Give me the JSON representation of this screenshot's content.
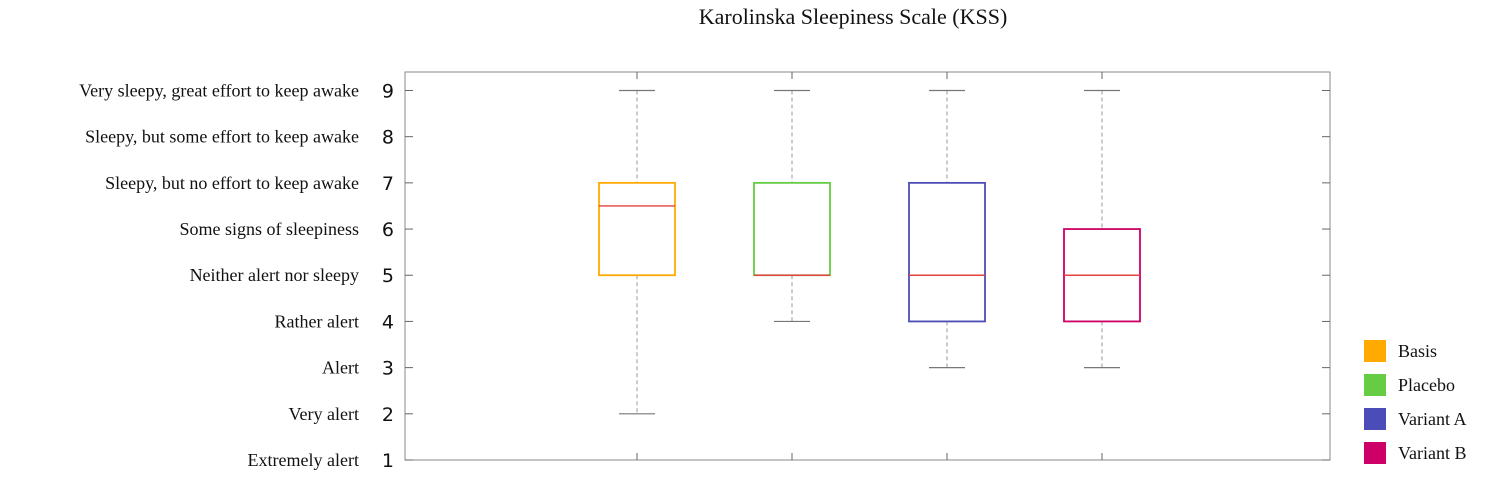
{
  "chart_data": {
    "type": "box",
    "title": "Karolinska Sleepiness Scale (KSS)",
    "xlabel": "",
    "ylabel": "",
    "ylim": [
      1,
      9.4
    ],
    "y_ticks": [
      1,
      2,
      3,
      4,
      5,
      6,
      7,
      8,
      9
    ],
    "y_tick_descriptions": [
      "Extremely alert",
      "Very alert",
      "Alert",
      "Rather alert",
      "Neither alert nor sleepy",
      "Some signs of sleepiness",
      "Sleepy, but no effort to keep awake",
      "Sleepy, but some effort to keep awake",
      "Very sleepy, great effort to keep awake"
    ],
    "legend_position": "right",
    "grid": false,
    "median_color": "#e8413f",
    "series": [
      {
        "name": "Basis",
        "color": "#ffaa00",
        "min": 2,
        "q1": 5,
        "median": 6.5,
        "q3": 7,
        "max": 9
      },
      {
        "name": "Placebo",
        "color": "#66cc44",
        "min": 4,
        "q1": 5,
        "median": 5,
        "q3": 7,
        "max": 9
      },
      {
        "name": "Variant A",
        "color": "#4c4cb8",
        "min": 3,
        "q1": 4,
        "median": 5,
        "q3": 7,
        "max": 9
      },
      {
        "name": "Variant B",
        "color": "#cc0066",
        "min": 3,
        "q1": 4,
        "median": 5,
        "q3": 6,
        "max": 9
      }
    ]
  }
}
